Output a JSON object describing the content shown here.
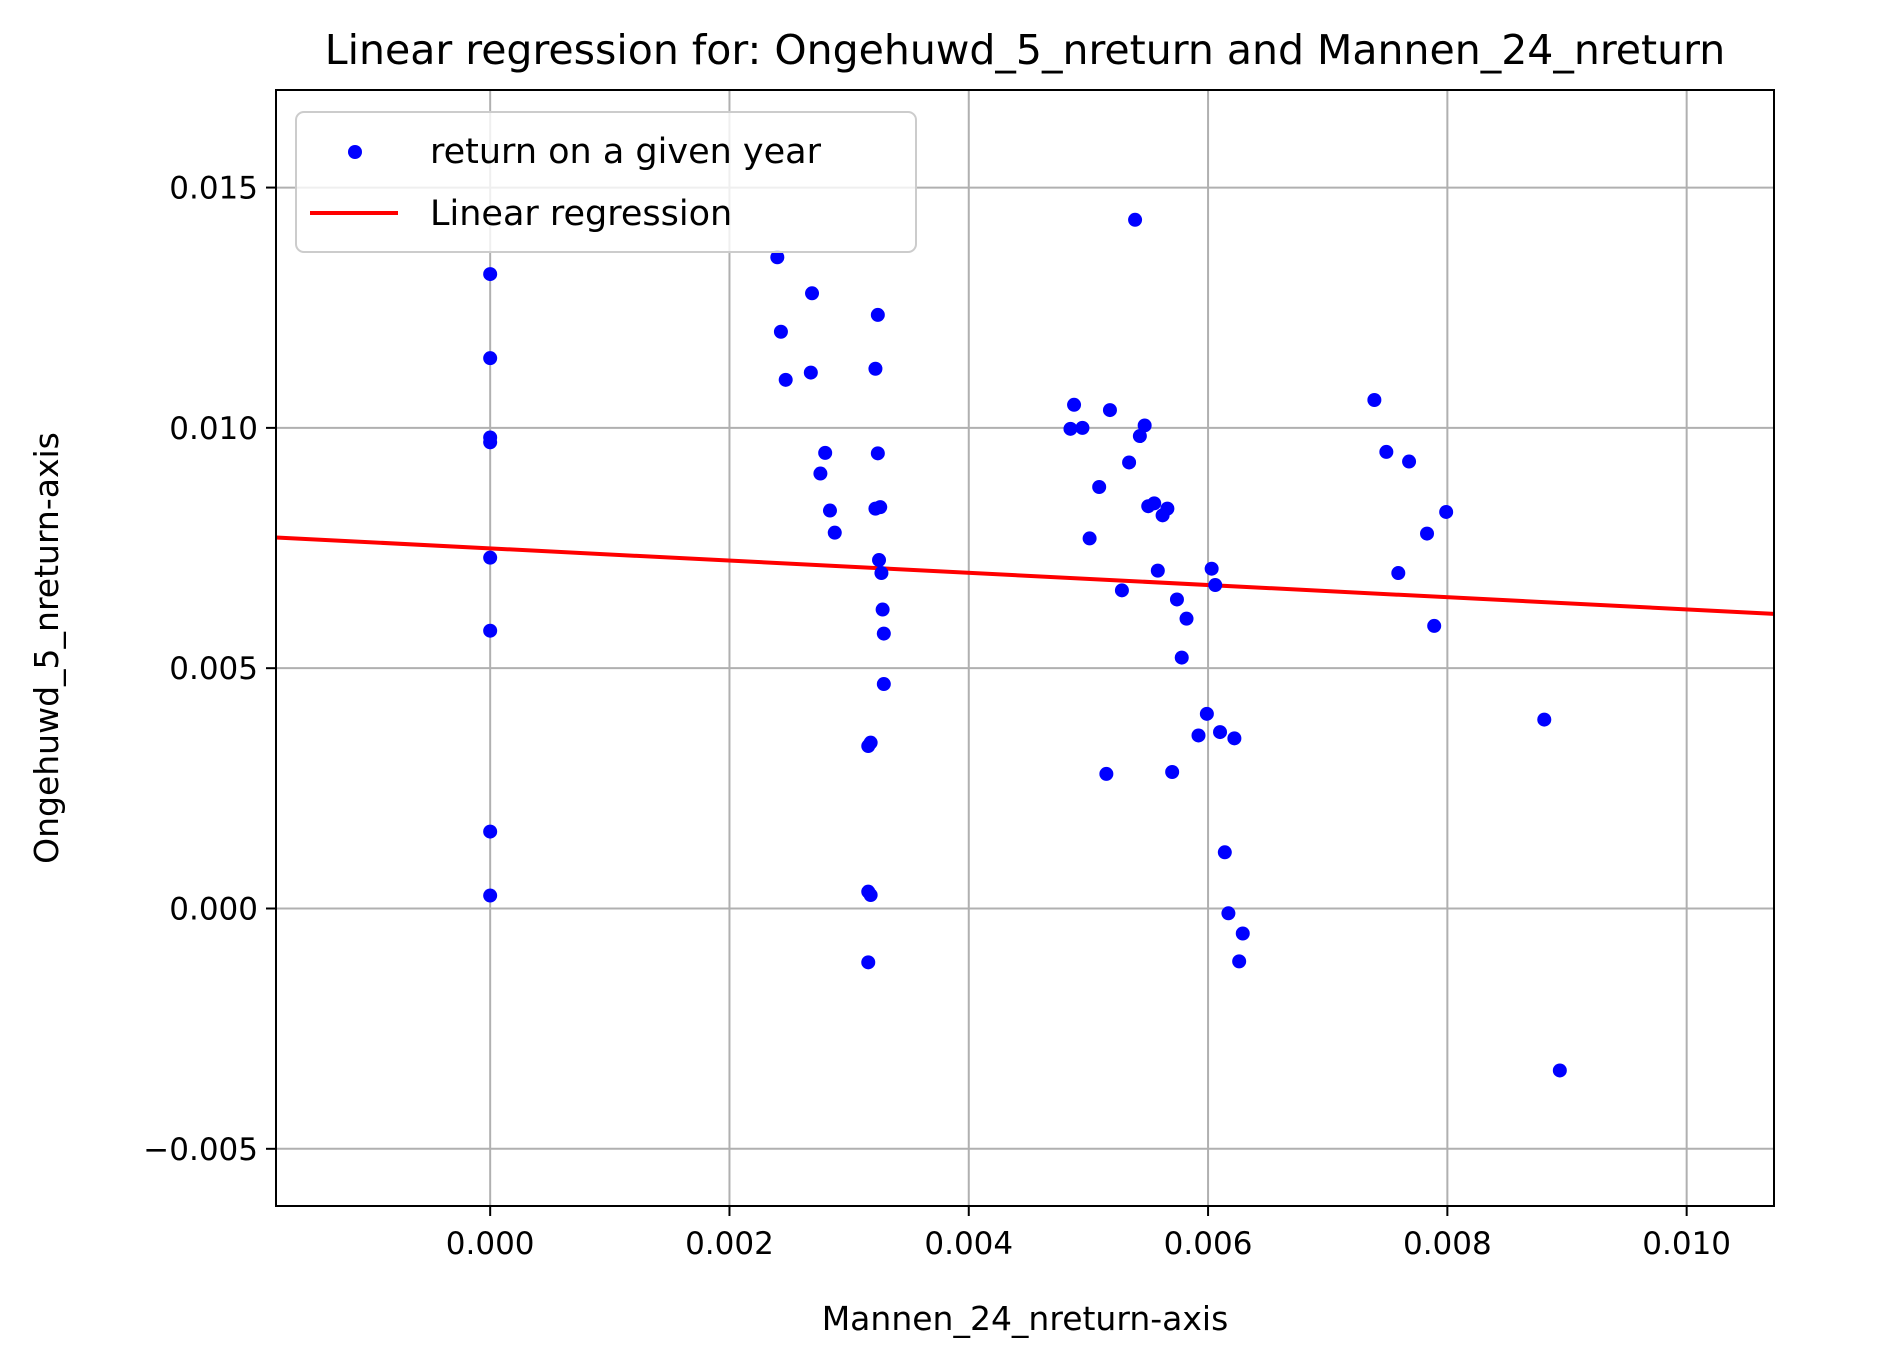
{
  "chart_data": {
    "type": "scatter",
    "title": "Linear regression for: Ongehuwd_5_nreturn and Mannen_24_nreturn",
    "xlabel": "Mannen_24_nreturn-axis",
    "ylabel": "Ongehuwd_5_nreturn-axis",
    "xlim": [
      -0.00179,
      0.01073
    ],
    "ylim": [
      -0.00619,
      0.01703
    ],
    "xticks": [
      0.0,
      0.002,
      0.004,
      0.006,
      0.008,
      0.01
    ],
    "xtick_labels": [
      "0.000",
      "0.002",
      "0.004",
      "0.006",
      "0.008",
      "0.010"
    ],
    "yticks": [
      -0.005,
      0.0,
      0.005,
      0.01,
      0.015
    ],
    "ytick_labels": [
      "−0.005",
      "0.000",
      "0.005",
      "0.010",
      "0.015"
    ],
    "grid": true,
    "legend_position": "upper-left",
    "colors": {
      "points": "#0000ff",
      "line": "#ff0000",
      "grid": "#b0b0b0"
    },
    "series": [
      {
        "name": "return on a given year",
        "kind": "scatter",
        "points": [
          [
            0.0,
            0.0132
          ],
          [
            0.0,
            0.01145
          ],
          [
            0.0,
            0.0098
          ],
          [
            0.0,
            0.0097
          ],
          [
            0.0,
            0.0073
          ],
          [
            0.0,
            0.00578
          ],
          [
            0.0,
            0.0016
          ],
          [
            0.0,
            0.00027
          ],
          [
            0.0024,
            0.01355
          ],
          [
            0.00243,
            0.012
          ],
          [
            0.00247,
            0.011
          ],
          [
            0.00269,
            0.0128
          ],
          [
            0.00268,
            0.01115
          ],
          [
            0.00276,
            0.00905
          ],
          [
            0.0028,
            0.00948
          ],
          [
            0.00284,
            0.00828
          ],
          [
            0.00288,
            0.00782
          ],
          [
            0.00316,
            0.00338
          ],
          [
            0.00318,
            0.00345
          ],
          [
            0.00316,
            0.00035
          ],
          [
            0.00318,
            0.00028
          ],
          [
            0.00316,
            -0.00112
          ],
          [
            0.00322,
            0.01123
          ],
          [
            0.00324,
            0.01235
          ],
          [
            0.00324,
            0.00947
          ],
          [
            0.00322,
            0.00832
          ],
          [
            0.00326,
            0.00835
          ],
          [
            0.00325,
            0.00725
          ],
          [
            0.00327,
            0.00698
          ],
          [
            0.00328,
            0.00622
          ],
          [
            0.00329,
            0.00572
          ],
          [
            0.00329,
            0.00467
          ],
          [
            0.00485,
            0.00998
          ],
          [
            0.00488,
            0.01048
          ],
          [
            0.00495,
            0.01
          ],
          [
            0.00501,
            0.0077
          ],
          [
            0.00509,
            0.00877
          ],
          [
            0.00515,
            0.0028
          ],
          [
            0.00518,
            0.01037
          ],
          [
            0.00528,
            0.00662
          ],
          [
            0.00534,
            0.00928
          ],
          [
            0.00539,
            0.01433
          ],
          [
            0.00543,
            0.00983
          ],
          [
            0.00547,
            0.01005
          ],
          [
            0.0055,
            0.00837
          ],
          [
            0.00555,
            0.00843
          ],
          [
            0.00558,
            0.00703
          ],
          [
            0.00562,
            0.00818
          ],
          [
            0.00566,
            0.00832
          ],
          [
            0.0057,
            0.00284
          ],
          [
            0.00574,
            0.00643
          ],
          [
            0.00578,
            0.00522
          ],
          [
            0.00582,
            0.00603
          ],
          [
            0.00592,
            0.0036
          ],
          [
            0.00599,
            0.00405
          ],
          [
            0.00603,
            0.00707
          ],
          [
            0.00606,
            0.00673
          ],
          [
            0.0061,
            0.00367
          ],
          [
            0.00614,
            0.00117
          ],
          [
            0.00617,
            -0.0001
          ],
          [
            0.00622,
            0.00354
          ],
          [
            0.00626,
            -0.0011
          ],
          [
            0.00629,
            -0.00052
          ],
          [
            0.00739,
            0.01058
          ],
          [
            0.00749,
            0.0095
          ],
          [
            0.00759,
            0.00698
          ],
          [
            0.00768,
            0.0093
          ],
          [
            0.00783,
            0.0078
          ],
          [
            0.00789,
            0.00588
          ],
          [
            0.00799,
            0.00825
          ],
          [
            0.00881,
            0.00393
          ],
          [
            0.00894,
            -0.00337
          ]
        ]
      },
      {
        "name": "Linear regression",
        "kind": "line",
        "points": [
          [
            -0.00179,
            0.00772
          ],
          [
            0.01073,
            0.00613
          ]
        ]
      }
    ]
  }
}
